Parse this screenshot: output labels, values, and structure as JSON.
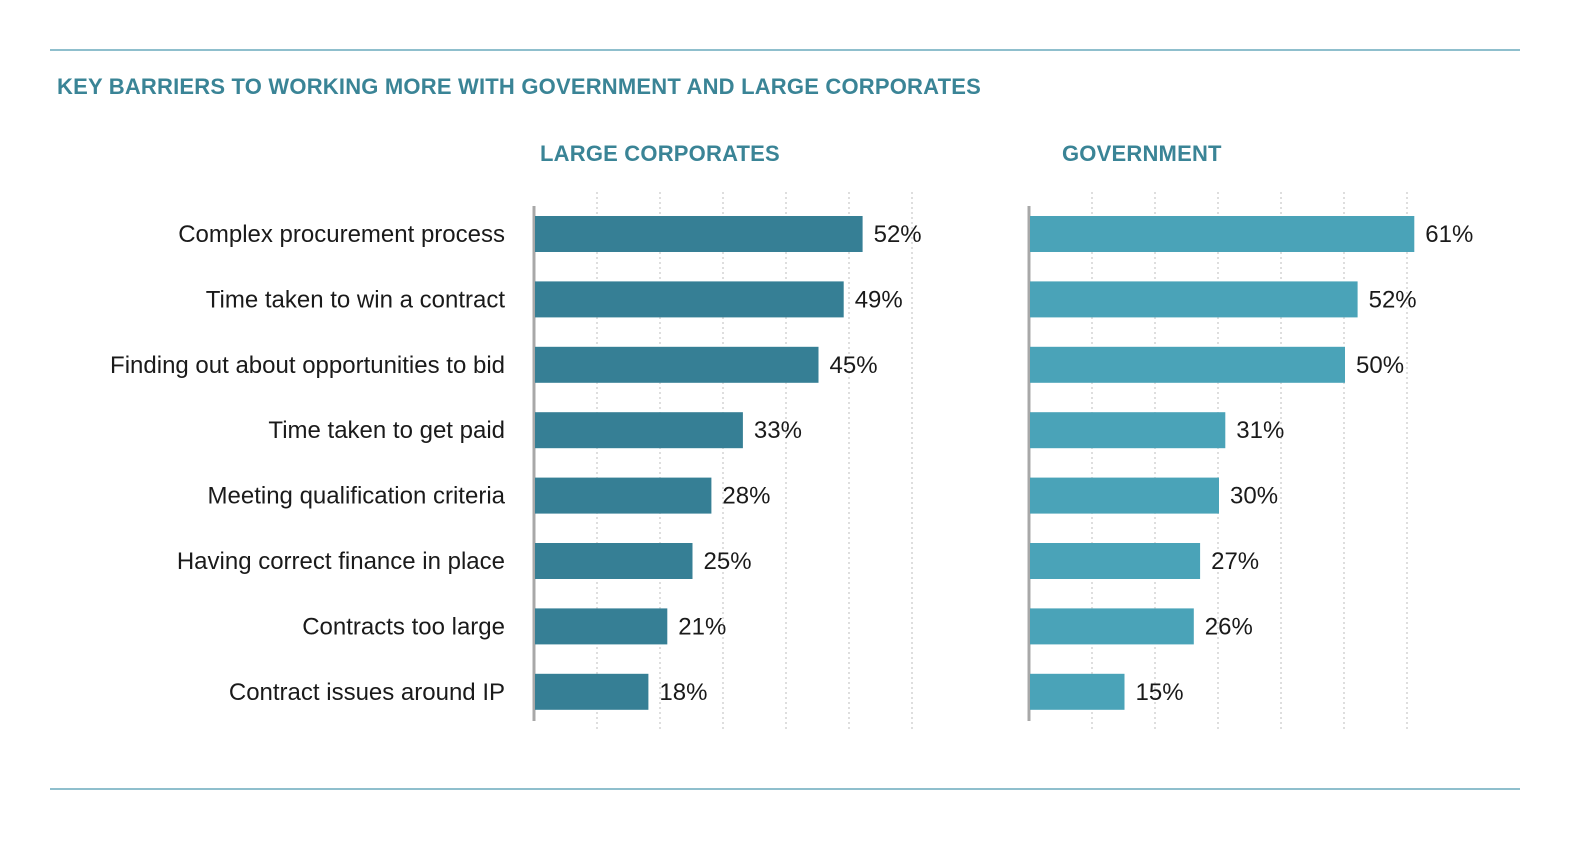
{
  "chart_data": {
    "type": "bar",
    "title": "KEY BARRIERS TO WORKING MORE WITH GOVERNMENT AND LARGE CORPORATES",
    "categories": [
      "Complex procurement process",
      "Time taken to win a contract",
      "Finding out about opportunities to bid",
      "Time taken to get paid",
      "Meeting qualification criteria",
      "Having correct finance in place",
      "Contracts too large",
      "Contract issues around IP"
    ],
    "series": [
      {
        "name": "LARGE CORPORATES",
        "color": "#367f95",
        "values": [
          52,
          49,
          45,
          33,
          28,
          25,
          21,
          18
        ],
        "value_labels": [
          "52%",
          "49%",
          "45%",
          "33%",
          "28%",
          "25%",
          "21%",
          "18%"
        ]
      },
      {
        "name": "GOVERNMENT",
        "color": "#4aa3b8",
        "values": [
          61,
          52,
          50,
          31,
          30,
          27,
          26,
          15
        ],
        "value_labels": [
          "61%",
          "52%",
          "50%",
          "31%",
          "30%",
          "27%",
          "26%",
          "15%"
        ]
      }
    ],
    "xlim": [
      0,
      60
    ],
    "grid": true,
    "layout": "two horizontal bar panels side by side"
  }
}
